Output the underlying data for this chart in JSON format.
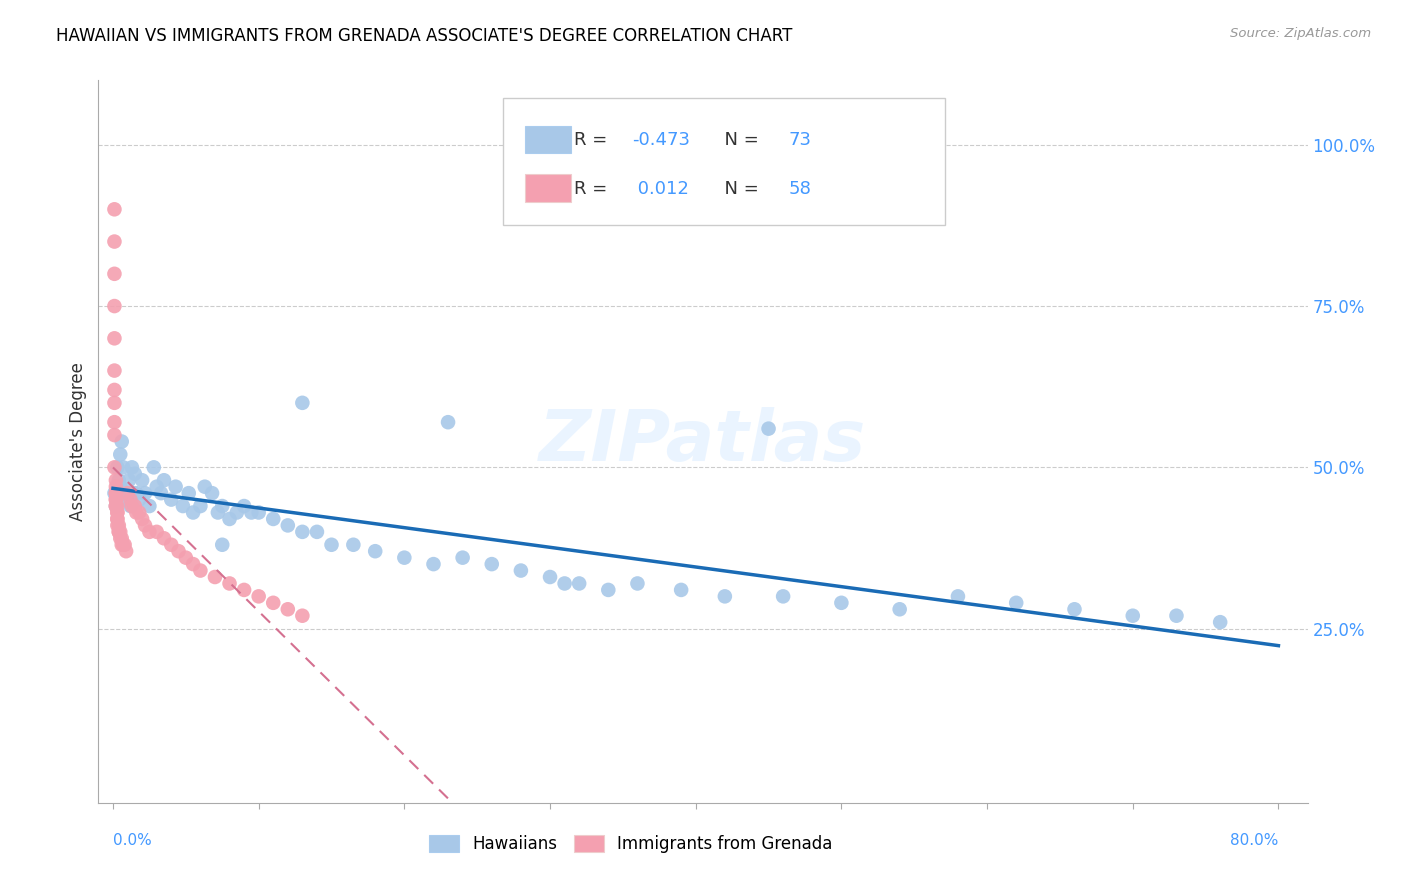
{
  "title": "HAWAIIAN VS IMMIGRANTS FROM GRENADA ASSOCIATE'S DEGREE CORRELATION CHART",
  "source": "Source: ZipAtlas.com",
  "ylabel": "Associate's Degree",
  "right_yticks": [
    "100.0%",
    "75.0%",
    "50.0%",
    "25.0%"
  ],
  "right_ytick_vals": [
    1.0,
    0.75,
    0.5,
    0.25
  ],
  "legend1_label": "Hawaiians",
  "legend2_label": "Immigrants from Grenada",
  "R_blue": -0.473,
  "N_blue": 73,
  "R_pink": 0.012,
  "N_pink": 58,
  "color_blue": "#a8c8e8",
  "color_pink": "#f4a0b0",
  "trendline_blue": "#1a6bb5",
  "trendline_pink": "#d47090",
  "watermark": "ZIPatlas",
  "xlim": [
    0.0,
    0.8
  ],
  "ylim": [
    0.0,
    1.05
  ],
  "blue_x": [
    0.001,
    0.002,
    0.003,
    0.003,
    0.004,
    0.005,
    0.005,
    0.006,
    0.007,
    0.008,
    0.009,
    0.01,
    0.011,
    0.012,
    0.013,
    0.014,
    0.015,
    0.016,
    0.018,
    0.02,
    0.022,
    0.025,
    0.028,
    0.03,
    0.033,
    0.035,
    0.04,
    0.043,
    0.048,
    0.052,
    0.055,
    0.06,
    0.063,
    0.068,
    0.072,
    0.075,
    0.08,
    0.085,
    0.09,
    0.095,
    0.1,
    0.11,
    0.12,
    0.13,
    0.14,
    0.15,
    0.165,
    0.18,
    0.2,
    0.22,
    0.24,
    0.26,
    0.28,
    0.3,
    0.32,
    0.34,
    0.36,
    0.39,
    0.42,
    0.46,
    0.5,
    0.54,
    0.58,
    0.62,
    0.66,
    0.7,
    0.73,
    0.76,
    0.23,
    0.13,
    0.45,
    0.075,
    0.31
  ],
  "blue_y": [
    0.46,
    0.44,
    0.5,
    0.46,
    0.48,
    0.47,
    0.52,
    0.54,
    0.5,
    0.46,
    0.45,
    0.46,
    0.48,
    0.44,
    0.5,
    0.46,
    0.49,
    0.46,
    0.45,
    0.48,
    0.46,
    0.44,
    0.5,
    0.47,
    0.46,
    0.48,
    0.45,
    0.47,
    0.44,
    0.46,
    0.43,
    0.44,
    0.47,
    0.46,
    0.43,
    0.44,
    0.42,
    0.43,
    0.44,
    0.43,
    0.43,
    0.42,
    0.41,
    0.4,
    0.4,
    0.38,
    0.38,
    0.37,
    0.36,
    0.35,
    0.36,
    0.35,
    0.34,
    0.33,
    0.32,
    0.31,
    0.32,
    0.31,
    0.3,
    0.3,
    0.29,
    0.28,
    0.3,
    0.29,
    0.28,
    0.27,
    0.27,
    0.26,
    0.57,
    0.6,
    0.56,
    0.38,
    0.32
  ],
  "pink_x": [
    0.001,
    0.001,
    0.001,
    0.001,
    0.001,
    0.001,
    0.001,
    0.001,
    0.001,
    0.002,
    0.002,
    0.002,
    0.002,
    0.002,
    0.002,
    0.002,
    0.002,
    0.003,
    0.003,
    0.003,
    0.003,
    0.003,
    0.003,
    0.004,
    0.004,
    0.004,
    0.005,
    0.005,
    0.006,
    0.006,
    0.007,
    0.008,
    0.009,
    0.01,
    0.012,
    0.013,
    0.015,
    0.016,
    0.018,
    0.02,
    0.022,
    0.025,
    0.03,
    0.035,
    0.04,
    0.045,
    0.05,
    0.055,
    0.06,
    0.07,
    0.08,
    0.09,
    0.1,
    0.11,
    0.12,
    0.13,
    0.001,
    0.001
  ],
  "pink_y": [
    0.9,
    0.85,
    0.8,
    0.75,
    0.7,
    0.65,
    0.6,
    0.55,
    0.5,
    0.48,
    0.47,
    0.46,
    0.46,
    0.45,
    0.45,
    0.44,
    0.44,
    0.44,
    0.43,
    0.43,
    0.42,
    0.42,
    0.41,
    0.41,
    0.4,
    0.4,
    0.4,
    0.39,
    0.39,
    0.38,
    0.38,
    0.38,
    0.37,
    0.46,
    0.45,
    0.44,
    0.44,
    0.43,
    0.43,
    0.42,
    0.41,
    0.4,
    0.4,
    0.39,
    0.38,
    0.37,
    0.36,
    0.35,
    0.34,
    0.33,
    0.32,
    0.31,
    0.3,
    0.29,
    0.28,
    0.27,
    0.57,
    0.62
  ]
}
